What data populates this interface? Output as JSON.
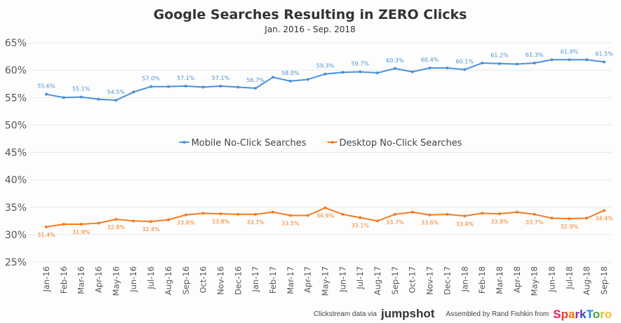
{
  "chart_data": {
    "type": "line",
    "title": "Google Searches Resulting in ZERO Clicks",
    "subtitle": "Jan. 2016 - Sep. 2018",
    "ylim": [
      25,
      65
    ],
    "yticks": [
      "25%",
      "30%",
      "35%",
      "40%",
      "45%",
      "50%",
      "55%",
      "60%",
      "65%"
    ],
    "ytick_values": [
      25,
      30,
      35,
      40,
      45,
      50,
      55,
      60,
      65
    ],
    "grid": true,
    "legend_placement": "center",
    "categories": [
      "Jan-16",
      "Feb-16",
      "Mar-16",
      "Apr-16",
      "May-16",
      "Jun-16",
      "Jul-16",
      "Aug-16",
      "Sep-16",
      "Oct-16",
      "Nov-16",
      "Dec-16",
      "Jan-17",
      "Feb-17",
      "Mar-17",
      "Apr-17",
      "May-17",
      "Jun-17",
      "Jul-17",
      "Aug-17",
      "Sep-17",
      "Oct-17",
      "Nov-17",
      "Dec-17",
      "Jan-18",
      "Feb-18",
      "Mar-18",
      "Apr-18",
      "May-18",
      "Jun-18",
      "Jul-18",
      "Aug-18",
      "Sep-18"
    ],
    "series": [
      {
        "name": "Mobile No-Click Searches",
        "color": "#4a90d9",
        "label_position": "above",
        "values": [
          55.6,
          55.0,
          55.1,
          54.7,
          54.5,
          56.0,
          57.0,
          57.0,
          57.1,
          56.9,
          57.1,
          56.9,
          56.7,
          58.7,
          58.0,
          58.3,
          59.3,
          59.6,
          59.7,
          59.5,
          60.3,
          59.7,
          60.4,
          60.4,
          60.1,
          61.3,
          61.2,
          61.1,
          61.3,
          61.9,
          61.9,
          61.9,
          61.5
        ],
        "labels": [
          "55.6%",
          "",
          "55.1%",
          "",
          "54.5%",
          "",
          "57.0%",
          "",
          "57.1%",
          "",
          "57.1%",
          "",
          "56.7%",
          "",
          "58.0%",
          "",
          "59.3%",
          "",
          "59.7%",
          "",
          "60.3%",
          "",
          "60.4%",
          "",
          "60.1%",
          "",
          "61.2%",
          "",
          "61.3%",
          "",
          "61.9%",
          "",
          "61.5%"
        ]
      },
      {
        "name": "Desktop No-Click Searches",
        "color": "#f47b20",
        "label_position": "below",
        "values": [
          31.4,
          31.9,
          31.9,
          32.1,
          32.8,
          32.5,
          32.4,
          32.7,
          33.6,
          33.9,
          33.8,
          33.7,
          33.7,
          34.1,
          33.5,
          33.5,
          34.9,
          33.7,
          33.1,
          32.5,
          33.7,
          34.1,
          33.6,
          33.7,
          33.4,
          33.9,
          33.8,
          34.1,
          33.7,
          33.0,
          32.9,
          33.0,
          34.4
        ],
        "labels": [
          "31.4%",
          "",
          "31.9%",
          "",
          "32.8%",
          "",
          "32.4%",
          "",
          "33.6%",
          "",
          "33.8%",
          "",
          "33.7%",
          "",
          "33.5%",
          "",
          "34.9%",
          "",
          "33.1%",
          "",
          "33.7%",
          "",
          "33.6%",
          "",
          "33.4%",
          "",
          "33.8%",
          "",
          "33.7%",
          "",
          "32.9%",
          "",
          "34.4%"
        ]
      }
    ]
  },
  "footer": {
    "source_text": "Clickstream data via",
    "source_logo": "jumpshot",
    "credit_text": "Assembled by Rand Fishkin from",
    "credit_logo": "SparkToro"
  }
}
